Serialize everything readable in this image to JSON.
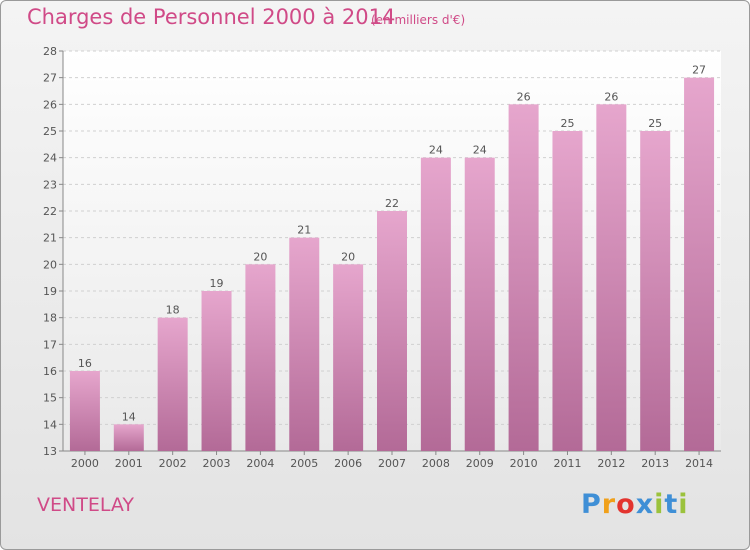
{
  "chart_data": {
    "type": "bar",
    "title": "Charges de Personnel 2000 à 2014",
    "subtitle": "(en milliers d'€)",
    "categories": [
      "2000",
      "2001",
      "2002",
      "2003",
      "2004",
      "2005",
      "2006",
      "2007",
      "2008",
      "2009",
      "2010",
      "2011",
      "2012",
      "2013",
      "2014"
    ],
    "values": [
      16,
      14,
      18,
      19,
      20,
      21,
      20,
      22,
      24,
      24,
      26,
      25,
      26,
      25,
      27
    ],
    "ylim": [
      13,
      28
    ],
    "yticks": [
      13,
      14,
      15,
      16,
      17,
      18,
      19,
      20,
      21,
      22,
      23,
      24,
      25,
      26,
      27,
      28
    ],
    "grid": true,
    "bar_color": "#d98dbb",
    "xlabel": "",
    "ylabel": ""
  },
  "commune": "VENTELAY",
  "logo": {
    "letters": [
      "P",
      "r",
      "o",
      "x",
      "i",
      "t",
      "i"
    ],
    "colors": [
      "#3f8fd6",
      "#f0a01a",
      "#e3342f",
      "#3f8fd6",
      "#9bc23c",
      "#3f8fd6",
      "#9bc23c"
    ]
  },
  "colors": {
    "accent": "#d04a87",
    "text": "#555555"
  }
}
